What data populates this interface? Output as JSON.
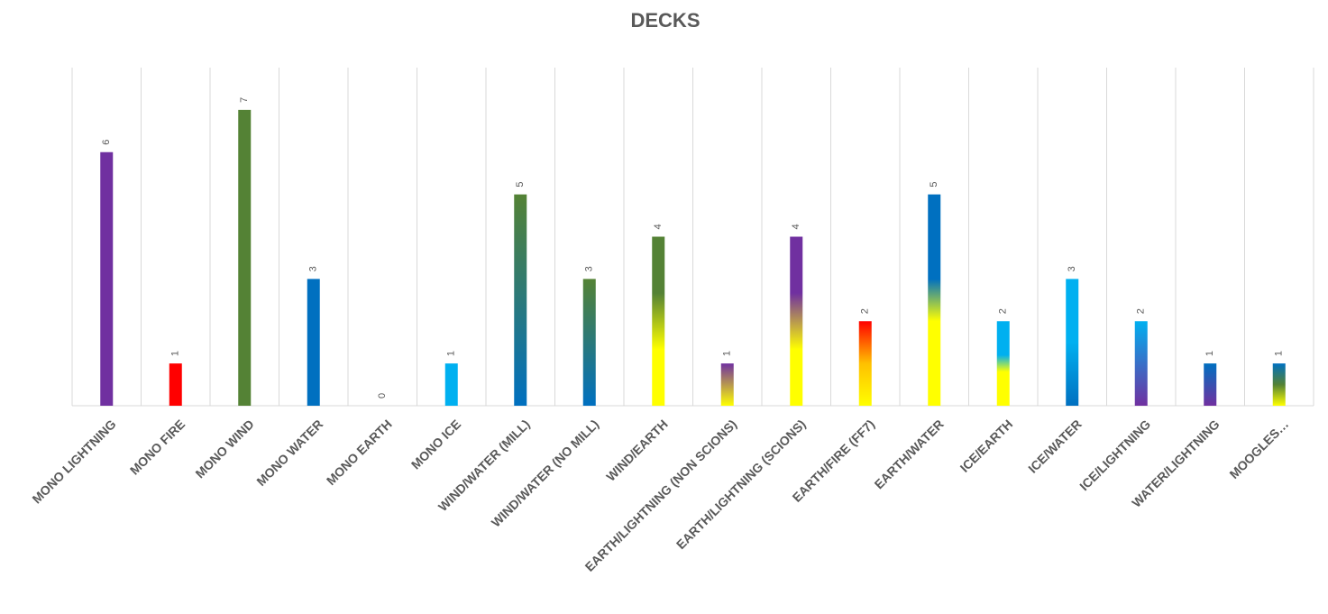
{
  "chart_data": {
    "type": "bar",
    "title": "DECKS",
    "categories": [
      "MONO LIGHTNING",
      "MONO FIRE",
      "MONO WIND",
      "MONO WATER",
      "MONO EARTH",
      "MONO ICE",
      "WIND/WATER (MILL)",
      "WIND/WATER (NO MILL)",
      "WIND/EARTH",
      "EARTH/LIGHTNING (NON SCIONS)",
      "EARTH/LIGHTNING (SCIONS)",
      "EARTH/FIRE (FF7)",
      "EARTH/WATER",
      "ICE/EARTH",
      "ICE/WATER",
      "ICE/LIGHTNING",
      "WATER/LIGHTNING",
      "MOOGLES…"
    ],
    "values": [
      6,
      1,
      7,
      3,
      0,
      1,
      5,
      3,
      4,
      1,
      4,
      2,
      5,
      2,
      3,
      2,
      1,
      1
    ],
    "colors": [
      [
        "#7030a0"
      ],
      [
        "#ff0000"
      ],
      [
        "#548235"
      ],
      [
        "#0070c0"
      ],
      null,
      [
        "#00b0f0"
      ],
      [
        "#548235",
        "#0070c0"
      ],
      [
        "#548235",
        "#0070c0"
      ],
      [
        "#548235",
        "#548235",
        "#ffff00",
        "#ffff00"
      ],
      [
        "#7030a0",
        "#ffff00"
      ],
      [
        "#7030a0",
        "#7030a0",
        "#ffff00",
        "#ffff00"
      ],
      [
        "#ff0000",
        "#ffc000",
        "#ffff00"
      ],
      [
        "#0070c0",
        "#0070c0",
        "#0070c0",
        "#ffff00",
        "#ffff00",
        "#ffff00"
      ],
      [
        "#00b0f0",
        "#00b0f0",
        "#00b0f0",
        "#ffff00",
        "#ffff00",
        "#ffff00"
      ],
      [
        "#00b0f0",
        "#00b0f0",
        "#0070c0"
      ],
      [
        "#00b0f0",
        "#7030a0"
      ],
      [
        "#0070c0",
        "#7030a0"
      ],
      [
        "#0070c0",
        "#548235",
        "#ffff00"
      ]
    ],
    "ylim": [
      0,
      8
    ],
    "grid": true
  }
}
